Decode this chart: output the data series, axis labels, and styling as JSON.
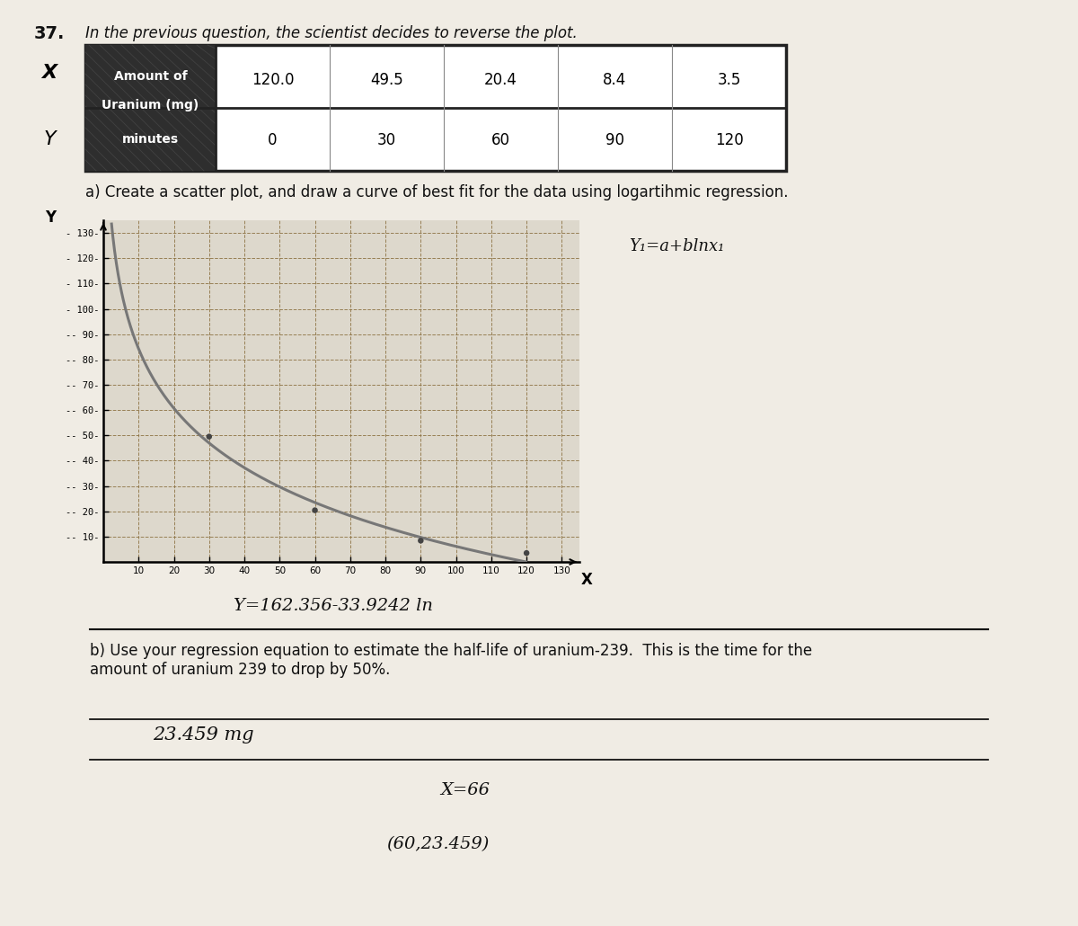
{
  "title_number": "37.",
  "title_text": "In the previous question, the scientist decides to reverse the plot.",
  "x_header": "Amount of\nUranium (mg)",
  "y_header": "minutes",
  "x_data": [
    120.0,
    49.5,
    20.4,
    8.4,
    3.5
  ],
  "y_data": [
    0,
    30,
    60,
    90,
    120
  ],
  "part_a": "a) Create a scatter plot, and draw a curve of best fit for the data using logartihmic regression.",
  "scatter_x": [
    30,
    60,
    90,
    120
  ],
  "scatter_y": [
    49.5,
    20.4,
    8.4,
    3.5
  ],
  "reg_a": 162.356,
  "reg_b": -33.9242,
  "annotation": "Y=a+blnx₁",
  "ytick_fmt": [
    "- 130-",
    "- 120-",
    "- 110-",
    "- 100-",
    "-- 90-",
    "-- 80-",
    "-- 70-",
    "-- 60-",
    "-- 50-",
    "-- 40-",
    "-- 30-",
    "-- 20-",
    "-- 10-"
  ],
  "xtick_vals": [
    10,
    20,
    30,
    40,
    50,
    60,
    70,
    80,
    90,
    100,
    110,
    120,
    130
  ],
  "ytick_vals": [
    130,
    120,
    110,
    100,
    90,
    80,
    70,
    60,
    50,
    40,
    30,
    20,
    10
  ],
  "reg_eq": "Y=162.356-33.9242 ln",
  "part_b": "b) Use your regression equation to estimate the half-life of uranium-239.  This is the time for the\namount of uranium 239 to drop by 50%.",
  "ans1": "23.459 mg",
  "ans2": "X=66",
  "ans3": "(60,23.459)",
  "bg": "#ddd8cc",
  "paper": "#f0ece4",
  "grid_c": "#a08060",
  "dot_c": "#444444",
  "curve_c": "#777777",
  "text_c": "#111111",
  "header_c": "#3a3a3a",
  "table_border": "#222222"
}
